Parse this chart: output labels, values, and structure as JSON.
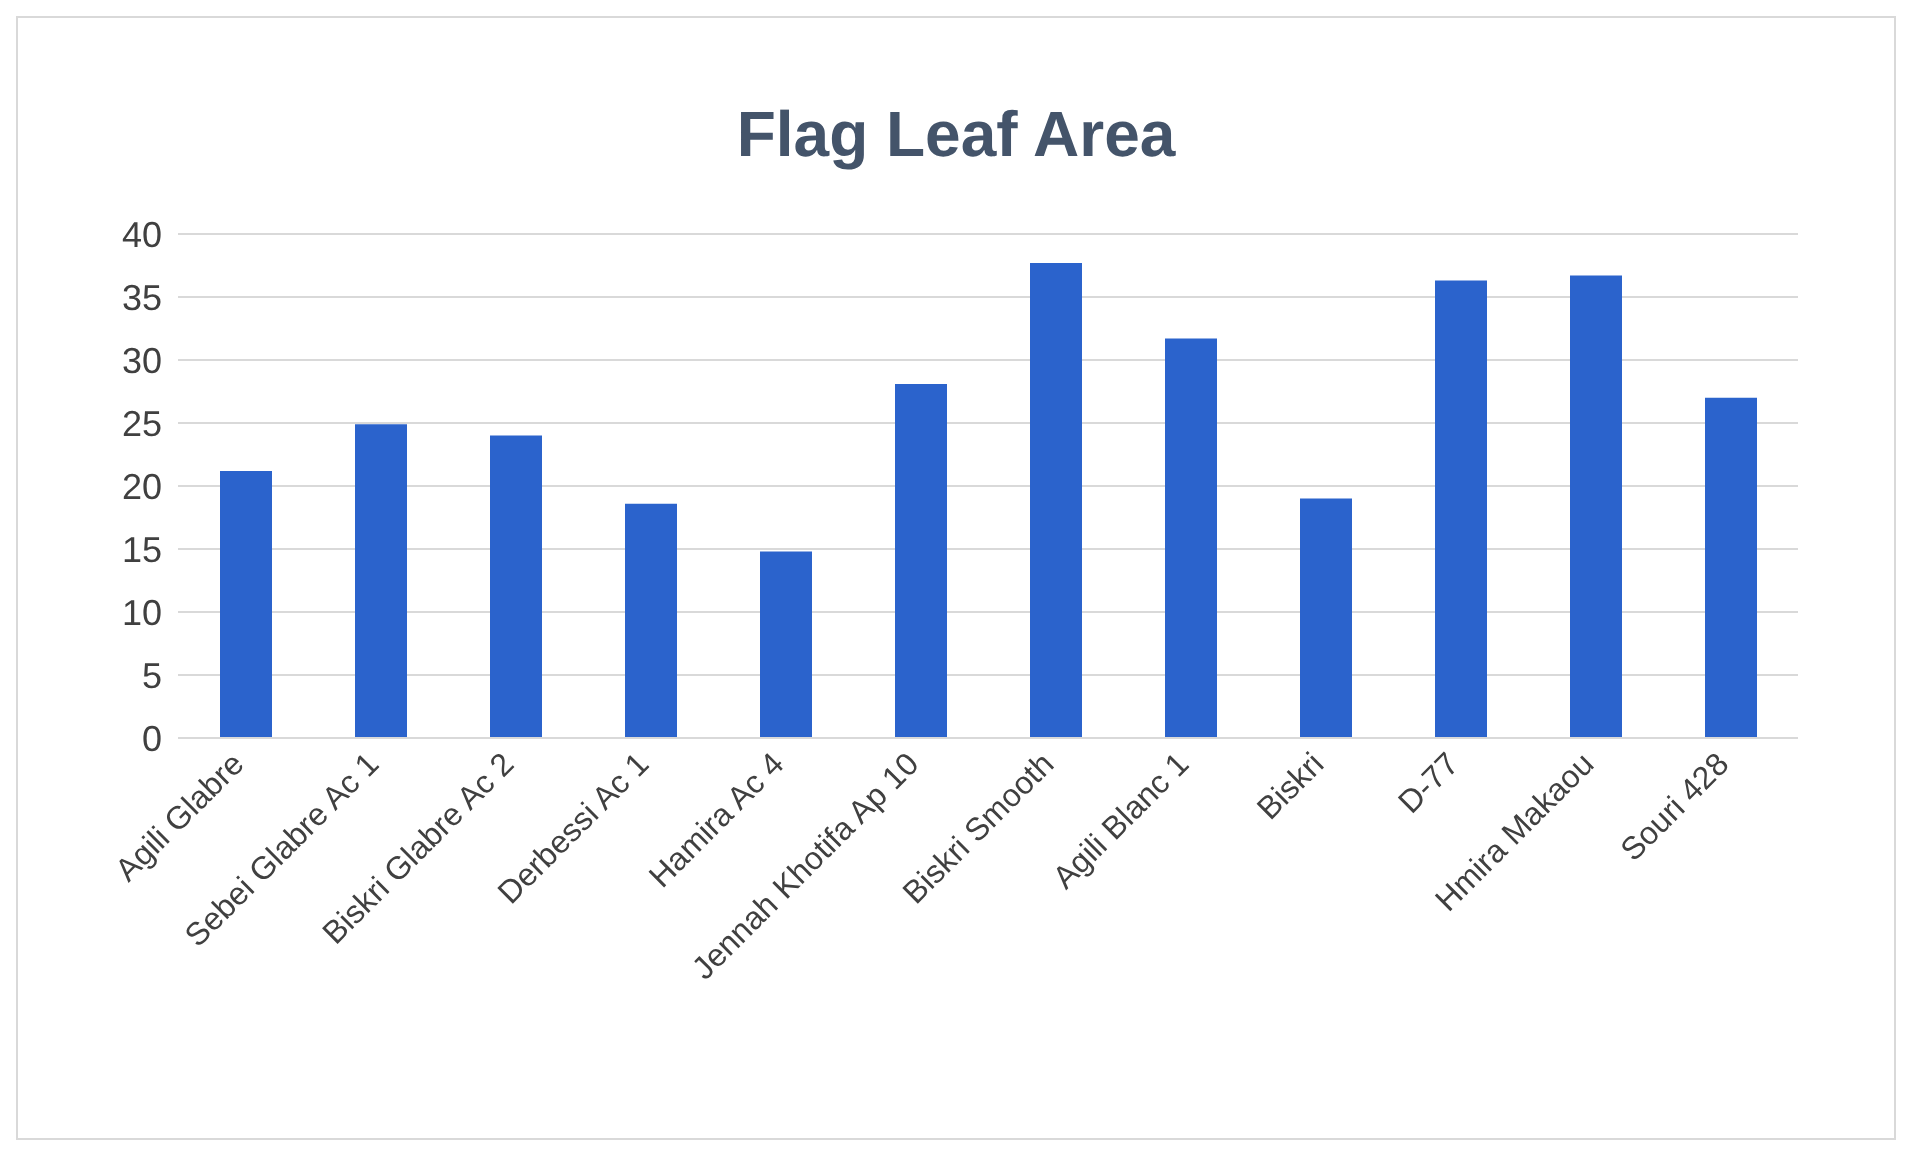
{
  "chart_data": {
    "type": "bar",
    "title": "Flag Leaf Area",
    "categories": [
      "Agili Glabre",
      "Sebei Glabre Ac 1",
      "Biskri Glabre Ac 2",
      "Derbessi Ac 1",
      "Hamira Ac 4",
      "Jennah Khotifa Ap 10",
      "Biskri Smooth",
      "Agili Blanc 1",
      "Biskri",
      "D-77",
      "Hmira Makaou",
      "Souri 428"
    ],
    "values": [
      21.2,
      24.9,
      24.0,
      18.6,
      14.8,
      28.1,
      37.7,
      31.7,
      19.0,
      36.3,
      36.7,
      27.0
    ],
    "color": "#2b63cc",
    "ylim": [
      0,
      40
    ],
    "yticks": [
      0,
      5,
      10,
      15,
      20,
      25,
      30,
      35,
      40
    ],
    "grid": "y"
  }
}
